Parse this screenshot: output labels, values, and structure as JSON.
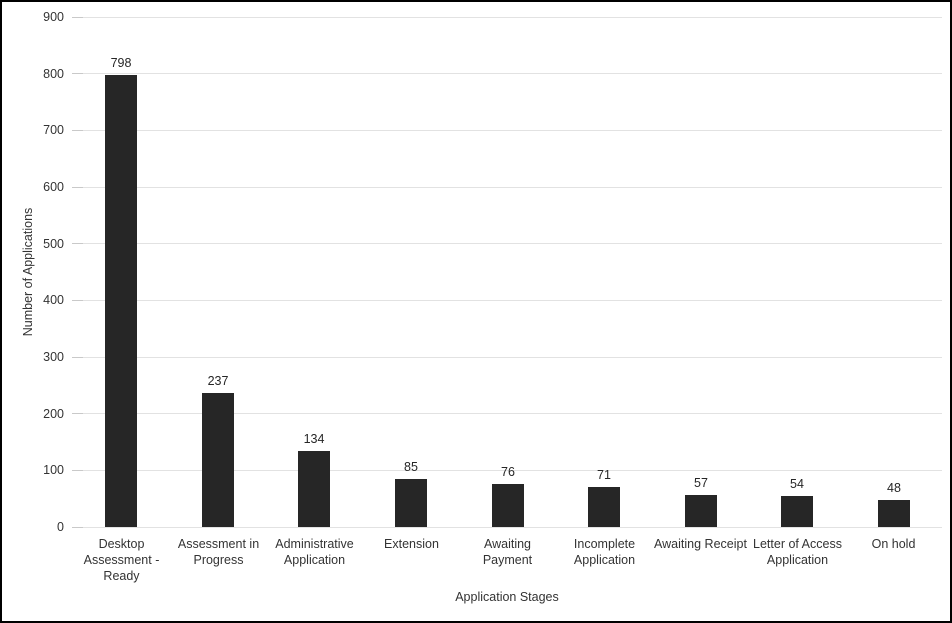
{
  "chart_data": {
    "type": "bar",
    "title": "",
    "categories": [
      "Desktop Assessment - Ready",
      "Assessment in Progress",
      "Administrative Application",
      "Extension",
      "Awaiting Payment",
      "Incomplete Application",
      "Awaiting Receipt",
      "Letter of Access Application",
      "On hold"
    ],
    "values": [
      798,
      237,
      134,
      85,
      76,
      71,
      57,
      54,
      48
    ],
    "xlabel": "Application Stages",
    "ylabel": "Number of Applications",
    "ylim": [
      0,
      900
    ],
    "ytick_step": 100,
    "ytick_labels": [
      "0",
      "100",
      "200",
      "300",
      "400",
      "500",
      "600",
      "700",
      "800",
      "900"
    ],
    "grid": true,
    "legend": "none",
    "bar_color": "#262626",
    "gridline_color": "#e2e2e2",
    "tick_color": "#c9c9c9",
    "text_color": "#333333",
    "value_label_color": "#262626",
    "background_color": "#ffffff",
    "frame_color": "#000000"
  }
}
